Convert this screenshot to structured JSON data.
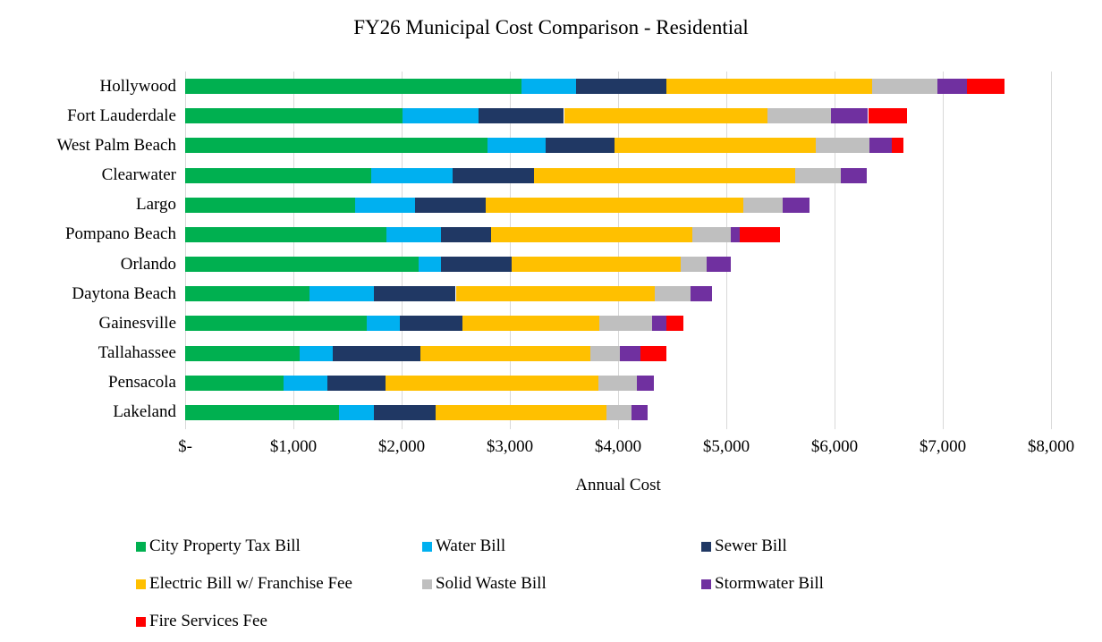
{
  "title": "FY26 Municipal Cost Comparison - Residential",
  "chart_data": {
    "type": "bar",
    "orientation": "horizontal",
    "stacked": true,
    "title": "FY26 Municipal Cost Comparison - Residential",
    "xlabel": "Annual Cost",
    "ylabel": "",
    "xlim": [
      0,
      8000
    ],
    "x_tick_step": 1000,
    "x_tick_labels": [
      "$-",
      "$1,000",
      "$2,000",
      "$3,000",
      "$4,000",
      "$5,000",
      "$6,000",
      "$7,000",
      "$8,000"
    ],
    "grid": "vertical",
    "gridline_color": "#D9D9D9",
    "legend_position": "bottom-left",
    "categories": [
      "Hollywood",
      "Fort Lauderdale",
      "West Palm Beach",
      "Clearwater",
      "Largo",
      "Pompano Beach",
      "Orlando",
      "Daytona Beach",
      "Gainesville",
      "Tallahassee",
      "Pensacola",
      "Lakeland"
    ],
    "series": [
      {
        "name": "City Property Tax Bill",
        "color": "#00B050",
        "values": [
          3110,
          2010,
          2790,
          1720,
          1570,
          1860,
          2160,
          1150,
          1680,
          1060,
          910,
          1420
        ]
      },
      {
        "name": "Water Bill",
        "color": "#00B0F0",
        "values": [
          500,
          700,
          540,
          750,
          550,
          500,
          200,
          590,
          300,
          300,
          400,
          320
        ]
      },
      {
        "name": "Sewer Bill",
        "color": "#203864",
        "values": [
          840,
          790,
          640,
          750,
          660,
          470,
          660,
          760,
          580,
          810,
          540,
          570
        ]
      },
      {
        "name": "Electric Bill w/ Franchise Fee",
        "color": "#FFC000",
        "values": [
          1900,
          1880,
          1860,
          2420,
          2380,
          1860,
          1560,
          1840,
          1270,
          1570,
          1970,
          1580
        ]
      },
      {
        "name": "Solid Waste Bill",
        "color": "#BFBFBF",
        "values": [
          600,
          590,
          490,
          420,
          360,
          350,
          240,
          330,
          480,
          280,
          350,
          230
        ]
      },
      {
        "name": "Stormwater Bill",
        "color": "#7030A0",
        "values": [
          270,
          340,
          210,
          240,
          250,
          80,
          220,
          200,
          140,
          190,
          160,
          150
        ]
      },
      {
        "name": "Fire Services Fee",
        "color": "#FF0000",
        "values": [
          350,
          360,
          110,
          0,
          0,
          380,
          0,
          0,
          150,
          240,
          0,
          0
        ]
      }
    ],
    "totals": [
      7570,
      6670,
      6640,
      6300,
      5770,
      5500,
      5040,
      4870,
      4600,
      4450,
      4330,
      4270
    ]
  }
}
